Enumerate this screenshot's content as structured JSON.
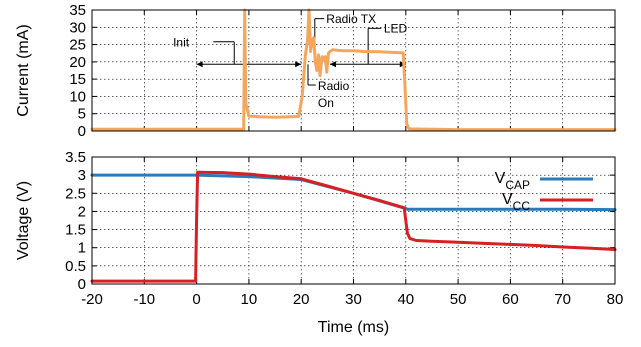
{
  "chart_data": [
    {
      "type": "line",
      "ylabel": "Current (mA)",
      "xlabel": "",
      "xlim": [
        -20,
        80
      ],
      "ylim": [
        0,
        35
      ],
      "yticks": [
        "0",
        "5",
        "10",
        "15",
        "20",
        "25",
        "30",
        "35"
      ],
      "grid": true,
      "series": [
        {
          "color": "#f5a65b",
          "x": [
            -20,
            9.0,
            9.2,
            9.4,
            10.0,
            12,
            15,
            19.5,
            20.2,
            20.8,
            21.2,
            21.5,
            21.8,
            22.1,
            22.4,
            22.7,
            23.0,
            23.3,
            23.6,
            24.0,
            24.3,
            24.6,
            24.9,
            25.2,
            25.5,
            26.0,
            27,
            28,
            30,
            32,
            35,
            38,
            39.5,
            39.8,
            40.2,
            40.6,
            50,
            60,
            70,
            80
          ],
          "y": [
            0.5,
            0.5,
            35,
            8,
            4.3,
            4.1,
            4.0,
            4.2,
            10,
            22,
            26,
            35,
            23,
            26,
            27,
            20,
            17.5,
            22,
            16,
            21.5,
            20.5,
            21.5,
            17,
            22.5,
            23,
            23.5,
            23.3,
            23.2,
            23.2,
            23.0,
            22.9,
            22.7,
            22.6,
            14,
            2,
            0.6,
            0.4,
            0.4,
            0.4,
            0.4
          ]
        }
      ],
      "annotations": [
        {
          "text": "Init"
        },
        {
          "text": "Radio TX"
        },
        {
          "text": "LED"
        },
        {
          "text": "Radio"
        },
        {
          "text": "On"
        }
      ]
    },
    {
      "type": "line",
      "ylabel": "Voltage (V)",
      "xlabel": "Time (ms)",
      "xlim": [
        -20,
        80
      ],
      "ylim": [
        0,
        3.5
      ],
      "xticks": [
        "-20",
        "-10",
        "0",
        "10",
        "20",
        "30",
        "40",
        "50",
        "60",
        "70",
        "80"
      ],
      "yticks": [
        "0",
        "0.5",
        "1",
        "1.5",
        "2",
        "2.5",
        "3",
        "3.5"
      ],
      "grid": true,
      "legend_position": "top-right",
      "series": [
        {
          "name_main": "V",
          "name_sub": "CAP",
          "color": "#2b7bba",
          "x": [
            -20,
            -10,
            0,
            10,
            20,
            30,
            40,
            40.3,
            50,
            60,
            70,
            80
          ],
          "y": [
            3.0,
            3.0,
            3.0,
            2.96,
            2.88,
            2.5,
            2.08,
            2.06,
            2.06,
            2.06,
            2.06,
            2.05
          ]
        },
        {
          "name_main": "V",
          "name_sub": "CC",
          "color": "#d62024",
          "x": [
            -20,
            -10,
            -0.2,
            0.0,
            0.2,
            5,
            10,
            15,
            20,
            25,
            30,
            35,
            39.7,
            40.0,
            40.3,
            40.8,
            42,
            45,
            50,
            55,
            60,
            65,
            70,
            75,
            80
          ],
          "y": [
            0.08,
            0.08,
            0.08,
            1.8,
            3.08,
            3.07,
            3.03,
            2.96,
            2.9,
            2.7,
            2.5,
            2.3,
            2.1,
            1.75,
            1.4,
            1.25,
            1.2,
            1.18,
            1.15,
            1.12,
            1.09,
            1.06,
            1.02,
            0.99,
            0.95
          ]
        }
      ]
    }
  ]
}
